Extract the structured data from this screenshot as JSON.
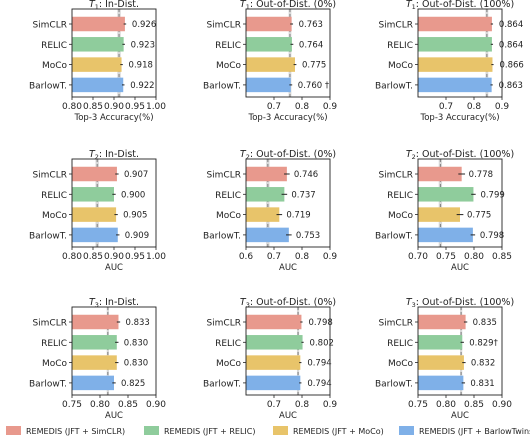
{
  "chart_data": [
    {
      "type": "bar",
      "title_sym": "T",
      "title_sub": "1",
      "title_rest": ": In-Dist.",
      "xlabel": "Top-3 Accuracy(%)",
      "xlim": [
        0.8,
        1.0
      ],
      "xticks": [
        "0.80",
        "0.85",
        "0.90",
        "0.95",
        "1.00"
      ],
      "xtick_values": [
        0.8,
        0.85,
        0.9,
        0.95,
        1.0
      ],
      "baseline": 0.912,
      "baseline_band": 0.004,
      "categories": [
        "SimCLR",
        "RELIC",
        "MoCo",
        "BarlowT."
      ],
      "values": [
        0.926,
        0.923,
        0.918,
        0.922
      ],
      "errors": [
        0.003,
        0.003,
        0.003,
        0.003
      ],
      "labels": [
        "0.926",
        "0.923",
        "0.918",
        "0.922"
      ]
    },
    {
      "type": "bar",
      "title_sym": "T",
      "title_sub": "1",
      "title_rest": ": Out-of-Dist. (0%)",
      "xlabel": "Top-3 Accuracy(%)",
      "xlim": [
        0.6,
        0.9
      ],
      "xticks": [
        "0.7",
        "0.8",
        "0.9"
      ],
      "xtick_values": [
        0.7,
        0.8,
        0.9
      ],
      "baseline": 0.757,
      "baseline_band": 0.005,
      "categories": [
        "SimCLR",
        "RELIC",
        "MoCo",
        "BarlowT."
      ],
      "values": [
        0.763,
        0.764,
        0.775,
        0.76
      ],
      "errors": [
        0.005,
        0.005,
        0.005,
        0.005
      ],
      "labels": [
        "0.763",
        "0.764",
        "0.775",
        "0.760 †"
      ]
    },
    {
      "type": "bar",
      "title_sym": "T",
      "title_sub": "1",
      "title_rest": ": Out-of-Dist. (100%)",
      "xlabel": "Top-3 Accuracy(%)",
      "xlim": [
        0.6,
        0.9
      ],
      "xticks": [
        "0.7",
        "0.8",
        "0.9"
      ],
      "xtick_values": [
        0.7,
        0.8,
        0.9
      ],
      "baseline": 0.846,
      "baseline_band": 0.005,
      "categories": [
        "SimCLR",
        "RELIC",
        "MoCo",
        "BarlowT."
      ],
      "values": [
        0.864,
        0.864,
        0.866,
        0.863
      ],
      "errors": [
        0.004,
        0.004,
        0.004,
        0.004
      ],
      "labels": [
        "0.864",
        "0.864",
        "0.866",
        "0.863"
      ]
    },
    {
      "type": "bar",
      "title_sym": "T",
      "title_sub": "2",
      "title_rest": ": In-Dist.",
      "xlabel": "AUC",
      "xlim": [
        0.8,
        1.0
      ],
      "xticks": [
        "0.80",
        "0.85",
        "0.90",
        "0.95",
        "1.00"
      ],
      "xtick_values": [
        0.8,
        0.85,
        0.9,
        0.95,
        1.0
      ],
      "baseline": 0.86,
      "baseline_band": 0.004,
      "categories": [
        "SimCLR",
        "RELIC",
        "MoCo",
        "BarlowT."
      ],
      "values": [
        0.907,
        0.9,
        0.905,
        0.909
      ],
      "errors": [
        0.004,
        0.004,
        0.004,
        0.004
      ],
      "labels": [
        "0.907",
        "0.900",
        "0.905",
        "0.909"
      ]
    },
    {
      "type": "bar",
      "title_sym": "T",
      "title_sub": "2",
      "title_rest": ": Out-of-Dist. (0%)",
      "xlabel": "AUC",
      "xlim": [
        0.6,
        0.9
      ],
      "xticks": [
        "0.6",
        "0.7",
        "0.8",
        "0.9"
      ],
      "xtick_values": [
        0.6,
        0.7,
        0.8,
        0.9
      ],
      "baseline": 0.678,
      "baseline_band": 0.006,
      "categories": [
        "SimCLR",
        "RELIC",
        "MoCo",
        "BarlowT."
      ],
      "values": [
        0.746,
        0.737,
        0.719,
        0.753
      ],
      "errors": [
        0.01,
        0.01,
        0.01,
        0.01
      ],
      "labels": [
        "0.746",
        "0.737",
        "0.719",
        "0.753"
      ]
    },
    {
      "type": "bar",
      "title_sym": "T",
      "title_sub": "2",
      "title_rest": ": Out-of-Dist. (100%)",
      "xlabel": "AUC",
      "xlim": [
        0.7,
        0.85
      ],
      "xticks": [
        "0.70",
        "0.75",
        "0.80",
        "0.85"
      ],
      "xtick_values": [
        0.7,
        0.75,
        0.8,
        0.85
      ],
      "baseline": 0.74,
      "baseline_band": 0.003,
      "categories": [
        "SimCLR",
        "RELIC",
        "MoCo",
        "BarlowT."
      ],
      "values": [
        0.778,
        0.799,
        0.775,
        0.798
      ],
      "errors": [
        0.006,
        0.004,
        0.006,
        0.004
      ],
      "labels": [
        "0.778",
        "0.799",
        "0.775",
        "0.798"
      ]
    },
    {
      "type": "bar",
      "title_sym": "T",
      "title_sub": "3",
      "title_rest": ": In-Dist.",
      "xlabel": "AUC",
      "xlim": [
        0.75,
        0.9
      ],
      "xticks": [
        "0.75",
        "0.80",
        "0.85",
        "0.90"
      ],
      "xtick_values": [
        0.75,
        0.8,
        0.85,
        0.9
      ],
      "baseline": 0.814,
      "baseline_band": 0.002,
      "categories": [
        "SimCLR",
        "RELIC",
        "MoCo",
        "BarlowT."
      ],
      "values": [
        0.833,
        0.83,
        0.83,
        0.825
      ],
      "errors": [
        0.003,
        0.003,
        0.003,
        0.003
      ],
      "labels": [
        "0.833",
        "0.830",
        "0.830",
        "0.825"
      ]
    },
    {
      "type": "bar",
      "title_sym": "T",
      "title_sub": "3",
      "title_rest": ": Out-of-Dist. (0%)",
      "xlabel": "AUC",
      "xlim": [
        0.6,
        0.9
      ],
      "xticks": [
        "0.7",
        "0.8",
        "0.9"
      ],
      "xtick_values": [
        0.7,
        0.8,
        0.9
      ],
      "baseline": 0.786,
      "baseline_band": 0.004,
      "categories": [
        "SimCLR",
        "RELIC",
        "MoCo",
        "BarlowT."
      ],
      "values": [
        0.798,
        0.802,
        0.794,
        0.794
      ],
      "errors": [
        0.004,
        0.004,
        0.004,
        0.004
      ],
      "labels": [
        "0.798",
        "0.802",
        "0.794",
        "0.794"
      ]
    },
    {
      "type": "bar",
      "title_sym": "T",
      "title_sub": "3",
      "title_rest": ": Out-of-Dist. (100%)",
      "xlabel": "AUC",
      "xlim": [
        0.75,
        0.9
      ],
      "xticks": [
        "0.75",
        "0.80",
        "0.85",
        "0.90"
      ],
      "xtick_values": [
        0.75,
        0.8,
        0.85,
        0.9
      ],
      "baseline": 0.827,
      "baseline_band": 0.002,
      "categories": [
        "SimCLR",
        "RELIC",
        "MoCo",
        "BarlowT."
      ],
      "values": [
        0.835,
        0.829,
        0.832,
        0.831
      ],
      "errors": [
        0.003,
        0.003,
        0.003,
        0.003
      ],
      "labels": [
        "0.835",
        "0.829†",
        "0.832",
        "0.831"
      ]
    }
  ],
  "legend": [
    {
      "label": "REMEDIS (JFT + SimCLR)",
      "color": "#e8998d"
    },
    {
      "label": "REMEDIS (JFT + RELIC)",
      "color": "#8fcc9c"
    },
    {
      "label": "REMEDIS (JFT + MoCo)",
      "color": "#e8c46a"
    },
    {
      "label": "REMEDIS (JFT + BarlowTwins)",
      "color": "#7fb0e8"
    }
  ],
  "colors": {
    "bars": [
      "#e8998d",
      "#8fcc9c",
      "#e8c46a",
      "#7fb0e8"
    ],
    "baseline": "#808080",
    "band": "#c8c8c8",
    "error": "#222222"
  }
}
